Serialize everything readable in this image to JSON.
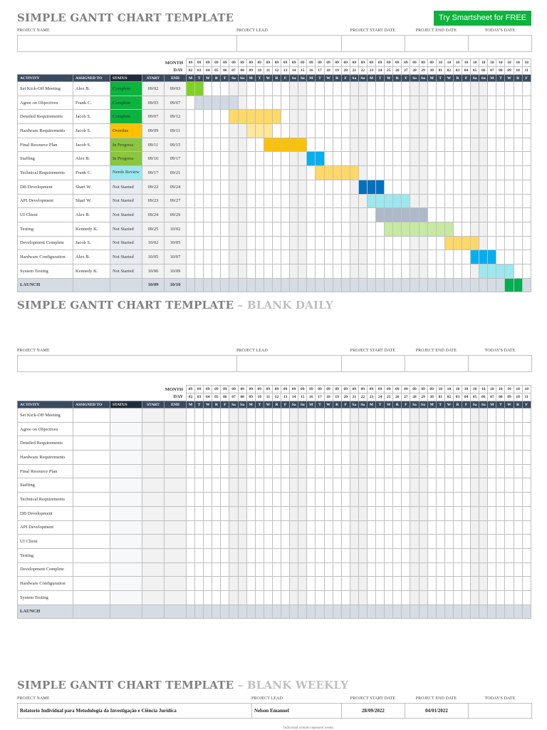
{
  "section1": {
    "title": "SIMPLE GANTT CHART TEMPLATE",
    "cta_label": "Try Smartsheet for FREE",
    "labels": {
      "project_name": "PROJECT NAME",
      "project_lead": "PROJECT LEAD",
      "start_date": "PROJECT START DATE",
      "end_date": "PROJECT END DATE",
      "today": "TODAY'S DATE"
    },
    "values": {
      "project_name": "",
      "project_lead": "",
      "start_date": "",
      "end_date": "",
      "today": ""
    }
  },
  "section2": {
    "title": "SIMPLE GANTT CHART TEMPLATE",
    "subtitle": "– BLANK DAILY",
    "labels": {
      "project_name": "PROJECT NAME",
      "project_lead": "PROJECT LEAD",
      "start_date": "PROJECT START DATE",
      "end_date": "PROJECT END DATE",
      "today": "TODAY'S DATE"
    }
  },
  "section3": {
    "title": "SIMPLE GANTT CHART TEMPLATE",
    "subtitle": "– BLANK WEEKLY",
    "labels": {
      "project_name": "PROJECT NAME",
      "project_lead": "PROJECT LEAD",
      "start_date": "PROJECT START DATE",
      "end_date": "PROJECT END DATE",
      "today": "TODAY'S DATE"
    },
    "values": {
      "project_name": "Relatorio Individual para Metodologia da Investigação e Ciência Jurídica",
      "project_lead": "Nelson Emanuel",
      "start_date": "28/09/2022",
      "end_date": "04/01/2022",
      "today": ""
    },
    "note": "Individual column represent weeks"
  },
  "table_headers": {
    "month": "MONTH",
    "day": "DAY",
    "activity": "ACTIVITY",
    "assigned": "ASSIGNED TO",
    "status": "STATUS",
    "start": "START",
    "end": "END"
  },
  "calendar": {
    "months": [
      "09",
      "09",
      "09",
      "09",
      "09",
      "09",
      "09",
      "09",
      "09",
      "09",
      "09",
      "09",
      "09",
      "09",
      "09",
      "09",
      "09",
      "09",
      "09",
      "09",
      "09",
      "09",
      "09",
      "09",
      "09",
      "09",
      "09",
      "09",
      "09",
      "10",
      "10",
      "10",
      "10",
      "10",
      "10",
      "10",
      "10",
      "10",
      "10",
      "10"
    ],
    "days": [
      "02",
      "03",
      "04",
      "05",
      "06",
      "07",
      "08",
      "09",
      "10",
      "11",
      "12",
      "13",
      "14",
      "15",
      "16",
      "17",
      "18",
      "19",
      "20",
      "21",
      "22",
      "23",
      "24",
      "25",
      "26",
      "27",
      "28",
      "29",
      "30",
      "01",
      "02",
      "03",
      "04",
      "05",
      "06",
      "07",
      "08",
      "09",
      "10",
      "11"
    ],
    "weekdays": [
      "M",
      "T",
      "W",
      "R",
      "F",
      "Sa",
      "Su",
      "M",
      "T",
      "W",
      "R",
      "F",
      "Sa",
      "Su",
      "M",
      "T",
      "W",
      "R",
      "F",
      "Sa",
      "Su",
      "M",
      "T",
      "W",
      "R",
      "F",
      "Sa",
      "Su",
      "M",
      "T",
      "W",
      "R",
      "F",
      "Sa",
      "Su",
      "M",
      "T",
      "W",
      "R",
      "F"
    ]
  },
  "tasks": [
    {
      "activity": "Set Kick-Off Meeting",
      "assigned": "Alex B.",
      "status": "Complete",
      "status_class": "complete",
      "start": "09/02",
      "end": "09/03",
      "bar": [
        0,
        1
      ],
      "color": "#7ed321"
    },
    {
      "activity": "Agree on Objectives",
      "assigned": "Frank C.",
      "status": "Complete",
      "status_class": "complete",
      "start": "09/03",
      "end": "09/07",
      "bar": [
        1,
        5
      ],
      "color": "#d1d9e3"
    },
    {
      "activity": "Detailed Requirements",
      "assigned": "Jacob S.",
      "status": "Complete",
      "status_class": "complete",
      "start": "09/07",
      "end": "09/12",
      "bar": [
        5,
        10
      ],
      "color": "#ffd966"
    },
    {
      "activity": "Hardware Requirements",
      "assigned": "Jacob S.",
      "status": "Overdue",
      "status_class": "overdue",
      "start": "09/09",
      "end": "09/11",
      "bar": [
        7,
        9
      ],
      "color": "#ffe699"
    },
    {
      "activity": "Final Resource Plan",
      "assigned": "Jacob S.",
      "status": "In Progress",
      "status_class": "progress",
      "start": "09/11",
      "end": "09/15",
      "bar": [
        9,
        13
      ],
      "color": "#ffc000"
    },
    {
      "activity": "Staffing",
      "assigned": "Alex B.",
      "status": "In Progress",
      "status_class": "progress",
      "start": "09/16",
      "end": "09/17",
      "bar": [
        14,
        15
      ],
      "color": "#00b0f0"
    },
    {
      "activity": "Technical Requirements",
      "assigned": "Frank C.",
      "status": "Needs Review",
      "status_class": "review",
      "start": "09/17",
      "end": "09/21",
      "bar": [
        15,
        19
      ],
      "color": "#ffd966"
    },
    {
      "activity": "DB Development",
      "assigned": "Shari W.",
      "status": "Not Started",
      "status_class": "notstarted",
      "start": "09/22",
      "end": "09/24",
      "bar": [
        20,
        22
      ],
      "color": "#0070c0"
    },
    {
      "activity": "API Development",
      "assigned": "Shari W.",
      "status": "Not Started",
      "status_class": "notstarted",
      "start": "09/23",
      "end": "09/27",
      "bar": [
        21,
        25
      ],
      "color": "#9be8ef"
    },
    {
      "activity": "UI Client",
      "assigned": "Alex B.",
      "status": "Not Started",
      "status_class": "notstarted",
      "start": "09/24",
      "end": "09/29",
      "bar": [
        22,
        27
      ],
      "color": "#adb9ca"
    },
    {
      "activity": "Testing",
      "assigned": "Kennedy K.",
      "status": "Not Started",
      "status_class": "notstarted",
      "start": "09/25",
      "end": "10/02",
      "bar": [
        23,
        30
      ],
      "color": "#c6eba0"
    },
    {
      "activity": "Development Complete",
      "assigned": "Jacob S.",
      "status": "Not Started",
      "status_class": "notstarted",
      "start": "10/02",
      "end": "10/05",
      "bar": [
        30,
        33
      ],
      "color": "#ffd966"
    },
    {
      "activity": "Hardware Configuration",
      "assigned": "Alex B.",
      "status": "Not Started",
      "status_class": "notstarted",
      "start": "10/05",
      "end": "10/07",
      "bar": [
        33,
        35
      ],
      "color": "#00b0f0"
    },
    {
      "activity": "System Testing",
      "assigned": "Kennedy K.",
      "status": "Not Started",
      "status_class": "notstarted",
      "start": "10/06",
      "end": "10/09",
      "bar": [
        34,
        37
      ],
      "color": "#9be8ef"
    },
    {
      "activity": "LAUNCH",
      "assigned": "",
      "status": "",
      "status_class": "",
      "start": "10/09",
      "end": "10/10",
      "bar": [
        37,
        38
      ],
      "color": "#00b050",
      "launch": true
    }
  ],
  "blank_activities": [
    "Set Kick-Off Meeting",
    "Agree on Objectives",
    "Detailed Requirements",
    "Hardware Requirements",
    "Final Resource Plan",
    "Staffing",
    "Technical Requirements",
    "DB Development",
    "API Development",
    "UI Client",
    "Testing",
    "Development Complete",
    "Hardware Configuration",
    "System Testing",
    "LAUNCH"
  ]
}
